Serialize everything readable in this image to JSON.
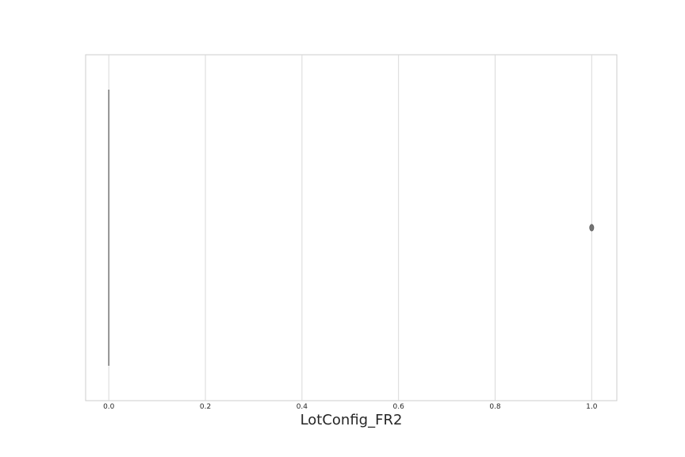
{
  "chart_data": {
    "type": "box",
    "orientation": "horizontal",
    "xlabel": "LotConfig_FR2",
    "ylabel": "",
    "title": "",
    "xlim": [
      -0.048,
      1.052
    ],
    "xticks": [
      0.0,
      0.2,
      0.4,
      0.6,
      0.8,
      1.0
    ],
    "xtick_labels": [
      "0.0",
      "0.2",
      "0.4",
      "0.6",
      "0.8",
      "1.0"
    ],
    "grid": "vertical",
    "box": {
      "min": 0.0,
      "q1": 0.0,
      "median": 0.0,
      "q3": 0.0,
      "max": 0.0,
      "outliers": [
        1.0
      ]
    },
    "colors": {
      "box_line": "#737373",
      "outlier_fill": "#737373",
      "grid": "#d9d9d9",
      "frame": "#cccccc"
    }
  }
}
